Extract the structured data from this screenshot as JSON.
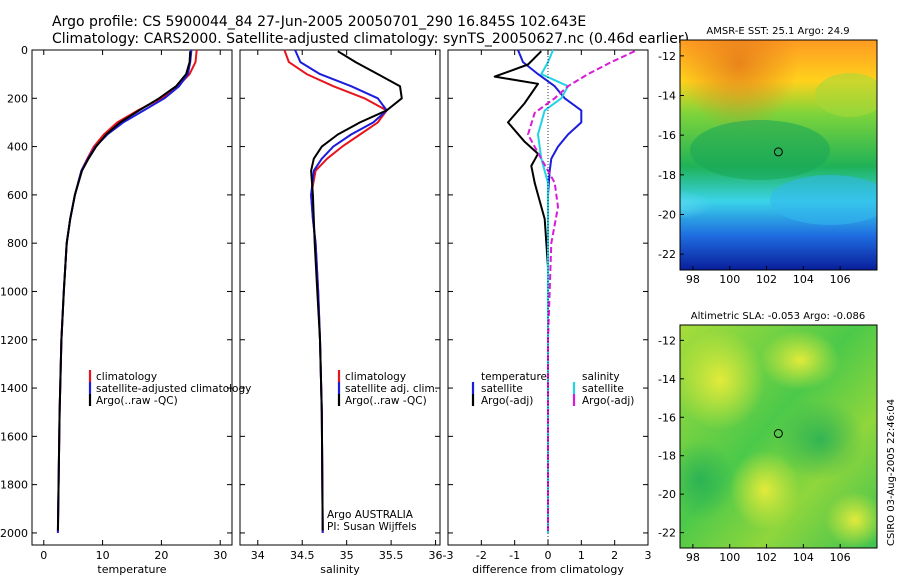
{
  "header": {
    "line1": "Argo profile: CS 5900044_84 27-Jun-2005 20050701_290 16.845S 102.643E",
    "line2": "Climatology: CARS2000. Satellite-adjusted climatology: synTS_20050627.nc (0.46d earlier)"
  },
  "colors": {
    "climatology": "#e8141d",
    "satellite": "#1c1cdc",
    "argo": "#000000",
    "salinity": "#22d3e6",
    "salinity_argo": "#d91ad9"
  },
  "chart_data": [
    {
      "type": "line",
      "panel": "temperature",
      "xlabel": "temperature",
      "ylabel": "",
      "xlim": [
        -2,
        32
      ],
      "ylim": [
        2050,
        0
      ],
      "xticks": [
        0,
        10,
        20,
        30
      ],
      "yticks": [
        0,
        200,
        400,
        600,
        800,
        1000,
        1200,
        1400,
        1600,
        1800,
        2000
      ],
      "legend": [
        "climatology",
        "satellite-adjusted climatology",
        "Argo(..raw -QC)"
      ],
      "series": [
        {
          "name": "climatology",
          "color": "climatology",
          "x": [
            26.0,
            25.8,
            24.8,
            22.8,
            20.0,
            16.0,
            12.5,
            10.2,
            8.5,
            7.4,
            6.4,
            5.3,
            4.5,
            3.9,
            3.4,
            3.0,
            2.7,
            2.4
          ],
          "y": [
            0,
            50,
            100,
            150,
            200,
            250,
            300,
            350,
            400,
            450,
            500,
            600,
            700,
            800,
            1000,
            1200,
            1500,
            2000
          ]
        },
        {
          "name": "satellite-adjusted climatology",
          "color": "satellite",
          "x": [
            25.1,
            24.9,
            24.5,
            23.0,
            20.5,
            17.0,
            13.5,
            10.8,
            8.8,
            7.5,
            6.4,
            5.3,
            4.5,
            3.9,
            3.4,
            3.0,
            2.7,
            2.4
          ],
          "y": [
            0,
            50,
            100,
            150,
            200,
            250,
            300,
            350,
            400,
            450,
            500,
            600,
            700,
            800,
            1000,
            1200,
            1500,
            2000
          ]
        },
        {
          "name": "Argo(..raw -QC)",
          "color": "argo",
          "x": [
            24.9,
            24.8,
            24.2,
            22.5,
            19.6,
            16.2,
            13.0,
            10.6,
            8.9,
            7.6,
            6.5,
            5.3,
            4.5,
            3.9,
            3.4,
            3.0,
            2.7,
            2.4
          ],
          "y": [
            5,
            50,
            100,
            150,
            200,
            250,
            300,
            350,
            400,
            450,
            500,
            600,
            700,
            800,
            1000,
            1200,
            1500,
            1990
          ]
        }
      ]
    },
    {
      "type": "line",
      "panel": "salinity",
      "xlabel": "salinity",
      "ylabel": "",
      "xlim": [
        33.8,
        36.05
      ],
      "ylim": [
        2050,
        0
      ],
      "xticks": [
        34,
        34.5,
        35,
        35.5,
        36
      ],
      "yticks": [
        0,
        200,
        400,
        600,
        800,
        1000,
        1200,
        1400,
        1600,
        1800,
        2000
      ],
      "legend": [
        "climatology",
        "satellite adj. clim.",
        "Argo(..raw -QC)"
      ],
      "annotations": [
        "Argo AUSTRALIA",
        "PI: Susan Wijffels"
      ],
      "series": [
        {
          "name": "climatology",
          "color": "climatology",
          "x": [
            34.3,
            34.35,
            34.55,
            34.85,
            35.2,
            35.45,
            35.35,
            35.15,
            34.95,
            34.78,
            34.65,
            34.6,
            34.62,
            34.65,
            34.68,
            34.7,
            34.72,
            34.73
          ],
          "y": [
            0,
            50,
            100,
            150,
            200,
            250,
            300,
            350,
            400,
            450,
            500,
            600,
            700,
            800,
            1000,
            1200,
            1500,
            2000
          ]
        },
        {
          "name": "satellite adj. clim.",
          "color": "satellite",
          "x": [
            34.42,
            34.48,
            34.7,
            35.05,
            35.35,
            35.45,
            35.3,
            35.05,
            34.85,
            34.72,
            34.63,
            34.6,
            34.62,
            34.65,
            34.68,
            34.7,
            34.72,
            34.73
          ],
          "y": [
            0,
            50,
            100,
            150,
            200,
            250,
            300,
            350,
            400,
            450,
            500,
            600,
            700,
            800,
            1000,
            1200,
            1500,
            2000
          ]
        },
        {
          "name": "Argo(..raw -QC)",
          "color": "argo",
          "x": [
            34.9,
            35.1,
            35.35,
            35.6,
            35.62,
            35.45,
            35.15,
            34.9,
            34.72,
            34.63,
            34.6,
            34.62,
            34.64,
            34.67,
            34.7,
            34.72,
            34.73
          ],
          "y": [
            5,
            50,
            100,
            150,
            200,
            250,
            300,
            350,
            400,
            450,
            500,
            600,
            800,
            1000,
            1200,
            1500,
            1990
          ]
        }
      ]
    },
    {
      "type": "line",
      "panel": "difference",
      "xlabel": "difference from climatology",
      "ylabel": "",
      "xlim": [
        -3,
        3
      ],
      "ylim": [
        2050,
        0
      ],
      "xticks": [
        -3,
        -2,
        -1,
        0,
        1,
        2,
        3
      ],
      "yticks": [
        0,
        200,
        400,
        600,
        800,
        1000,
        1200,
        1400,
        1600,
        1800,
        2000
      ],
      "legend_left": [
        "temperature",
        "satellite",
        "Argo(-adj)"
      ],
      "legend_right": [
        "salinity",
        "satellite",
        "Argo(-adj)"
      ],
      "series": [
        {
          "name": "temperature satellite",
          "color": "satellite",
          "x": [
            -0.9,
            -0.75,
            -0.3,
            0.2,
            0.5,
            1.0,
            1.0,
            0.6,
            0.3,
            0.1,
            0.05,
            0.0,
            0.0,
            0.0
          ],
          "y": [
            0,
            50,
            100,
            150,
            200,
            250,
            300,
            350,
            400,
            450,
            500,
            600,
            800,
            2000
          ]
        },
        {
          "name": "temperature Argo(-adj)",
          "color": "argo",
          "x": [
            -0.2,
            -0.6,
            -1.6,
            -0.3,
            -0.5,
            -0.7,
            -1.2,
            -0.7,
            -0.3,
            -0.5,
            -0.4,
            -0.3,
            -0.1,
            0.0,
            0.0
          ],
          "y": [
            5,
            60,
            110,
            140,
            180,
            220,
            300,
            380,
            430,
            480,
            550,
            600,
            700,
            900,
            1990
          ]
        },
        {
          "name": "salinity satellite",
          "color": "salinity",
          "x": [
            0.15,
            0.0,
            -0.2,
            0.6,
            0.4,
            -0.1,
            -0.3,
            -0.2,
            0.0,
            0.0,
            0.0,
            0.0
          ],
          "y": [
            0,
            50,
            100,
            150,
            200,
            250,
            350,
            450,
            550,
            800,
            1200,
            2000
          ]
        },
        {
          "name": "salinity Argo(-adj)",
          "color": "salinity_argo",
          "x": [
            2.6,
            1.9,
            1.2,
            0.6,
            0.2,
            -0.4,
            -0.6,
            -0.2,
            0.2,
            0.3,
            0.1,
            0.0,
            0.0
          ],
          "y": [
            5,
            50,
            100,
            150,
            200,
            260,
            350,
            450,
            550,
            650,
            800,
            1200,
            1990
          ]
        }
      ]
    },
    {
      "type": "heatmap",
      "panel": "sst_map",
      "title": "AMSR-E SST: 25.1 Argo: 24.9",
      "xticks": [
        98,
        100,
        102,
        104,
        106
      ],
      "yticks": [
        -12,
        -14,
        -16,
        -18,
        -20,
        -22
      ],
      "xlim": [
        97.3,
        108.0
      ],
      "ylim": [
        -22.8,
        -11.2
      ],
      "marker": {
        "lon": 102.643,
        "lat": -16.845
      }
    },
    {
      "type": "heatmap",
      "panel": "sla_map",
      "title": "Altimetric SLA: -0.053 Argo: -0.086",
      "xticks": [
        98,
        100,
        102,
        104,
        106
      ],
      "yticks": [
        -12,
        -14,
        -16,
        -18,
        -20,
        -22
      ],
      "xlim": [
        97.3,
        108.0
      ],
      "ylim": [
        -22.8,
        -11.2
      ],
      "marker": {
        "lon": 102.643,
        "lat": -16.845
      }
    }
  ],
  "footer": {
    "credit": "CSIRO 03-Aug-2005 22:46:04"
  }
}
